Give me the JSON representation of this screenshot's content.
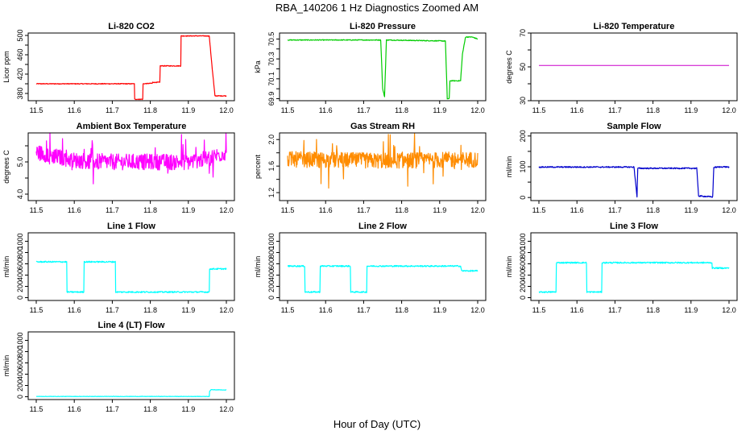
{
  "title": "RBA_140206  1 Hz Diagnostics Zoomed AM",
  "xlabel": "Hour of Day (UTC)",
  "chart_data": [
    {
      "type": "line",
      "title": "Li-820 CO2",
      "ylabel": "Licor ppm",
      "color": "#ff0000",
      "xlim": [
        11.5,
        12.0
      ],
      "xticks": [
        "11.5",
        "11.6",
        "11.7",
        "11.8",
        "11.9",
        "12.0"
      ],
      "ylim": [
        365,
        505
      ],
      "yticks": [
        380,
        400,
        420,
        440,
        460,
        480,
        500
      ],
      "yticklabels": [
        "380",
        "",
        "420",
        "",
        "460",
        "",
        "500"
      ],
      "noise": 0.8,
      "series": [
        {
          "x": [
            11.5,
            11.758,
            11.758,
            11.78,
            11.78,
            11.805,
            11.805,
            11.825,
            11.825,
            11.855,
            11.855,
            11.88,
            11.88,
            11.955,
            11.963,
            11.97,
            12.0
          ],
          "y": [
            400,
            400,
            368,
            368,
            400,
            401,
            403,
            403,
            437,
            437,
            437,
            437,
            499,
            499,
            430,
            375,
            375
          ]
        }
      ]
    },
    {
      "type": "line",
      "title": "Li-820 Pressure",
      "ylabel": "kPa",
      "color": "#00cc00",
      "xlim": [
        11.5,
        12.0
      ],
      "xticks": [
        "11.5",
        "11.6",
        "11.7",
        "11.8",
        "11.9",
        "12.0"
      ],
      "ylim": [
        69.88,
        70.56
      ],
      "yticks": [
        69.9,
        70.0,
        70.1,
        70.2,
        70.3,
        70.4,
        70.5
      ],
      "yticklabels": [
        "69.9",
        "",
        "70.1",
        "",
        "70.3",
        "",
        "70.5"
      ],
      "noise": 0.004,
      "series": [
        {
          "x": [
            11.5,
            11.745,
            11.75,
            11.755,
            11.76,
            11.915,
            11.92,
            11.925,
            11.927,
            11.955,
            11.96,
            11.968,
            11.985,
            12.0
          ],
          "y": [
            70.49,
            70.49,
            70.0,
            69.92,
            70.49,
            70.48,
            69.9,
            69.9,
            70.08,
            70.08,
            70.35,
            70.52,
            70.52,
            70.5
          ]
        }
      ]
    },
    {
      "type": "line",
      "title": "Li-820 Temperature",
      "ylabel": "degrees C",
      "color": "#cc00cc",
      "xlim": [
        11.5,
        12.0
      ],
      "xticks": [
        "11.5",
        "11.6",
        "11.7",
        "11.8",
        "11.9",
        "12.0"
      ],
      "ylim": [
        30,
        70
      ],
      "yticks": [
        30,
        40,
        50,
        60,
        70
      ],
      "yticklabels": [
        "30",
        "",
        "50",
        "",
        "70"
      ],
      "noise": 0,
      "series": [
        {
          "x": [
            11.5,
            12.0
          ],
          "y": [
            50.8,
            50.8
          ]
        }
      ]
    },
    {
      "type": "line",
      "title": "Ambient Box Temperature",
      "ylabel": "degrees C",
      "color": "#ff00ff",
      "xlim": [
        11.5,
        12.0
      ],
      "xticks": [
        "11.5",
        "11.6",
        "11.7",
        "11.8",
        "11.9",
        "12.0"
      ],
      "ylim": [
        3.8,
        5.9
      ],
      "yticks": [
        4.0,
        4.5,
        5.0,
        5.5
      ],
      "yticklabels": [
        "4.0",
        "",
        "5.0",
        ""
      ],
      "noise": 0.25,
      "series": [
        {
          "x": [
            11.5,
            11.6,
            11.7,
            11.8,
            11.9,
            11.95,
            12.0
          ],
          "y": [
            5.3,
            5.05,
            5.0,
            5.0,
            5.0,
            5.1,
            5.3
          ]
        }
      ]
    },
    {
      "type": "line",
      "title": "Gas Stream RH",
      "ylabel": "percent",
      "color": "#ff8c00",
      "xlim": [
        11.5,
        12.0
      ],
      "xticks": [
        "11.5",
        "11.6",
        "11.7",
        "11.8",
        "11.9",
        "12.0"
      ],
      "ylim": [
        1.08,
        2.1
      ],
      "yticks": [
        1.2,
        1.4,
        1.6,
        1.8,
        2.0
      ],
      "yticklabels": [
        "1.2",
        "",
        "1.6",
        "",
        "2.0"
      ],
      "noise": 0.12,
      "series": [
        {
          "x": [
            11.5,
            11.75,
            12.0
          ],
          "y": [
            1.7,
            1.68,
            1.7
          ]
        }
      ]
    },
    {
      "type": "line",
      "title": "Sample Flow",
      "ylabel": "ml/min",
      "color": "#0000cc",
      "xlim": [
        11.5,
        12.0
      ],
      "xticks": [
        "11.5",
        "11.6",
        "11.7",
        "11.8",
        "11.9",
        "12.0"
      ],
      "ylim": [
        -10,
        210
      ],
      "yticks": [
        0,
        50,
        100,
        150,
        200
      ],
      "yticklabels": [
        "0",
        "",
        "100",
        "",
        "200"
      ],
      "noise": 2,
      "series": [
        {
          "x": [
            11.5,
            11.75,
            11.755,
            11.758,
            11.76,
            11.915,
            11.92,
            11.957,
            11.96,
            11.985,
            12.0
          ],
          "y": [
            99,
            99,
            40,
            2,
            95,
            95,
            5,
            2,
            98,
            100,
            99
          ]
        }
      ]
    },
    {
      "type": "line",
      "title": "Line 1 Flow",
      "ylabel": "ml/min",
      "color": "#00ffff",
      "xlim": [
        11.5,
        12.0
      ],
      "xticks": [
        "11.5",
        "11.6",
        "11.7",
        "11.8",
        "11.9",
        "12.0"
      ],
      "ylim": [
        -50,
        1150
      ],
      "yticks": [
        0,
        200,
        400,
        600,
        800,
        1000
      ],
      "yticklabels": [
        "0",
        "200",
        "400",
        "600",
        "800",
        "1000"
      ],
      "noise": 12,
      "series": [
        {
          "x": [
            11.5,
            11.58,
            11.58,
            11.625,
            11.625,
            11.708,
            11.708,
            11.955,
            11.955,
            12.0
          ],
          "y": [
            635,
            635,
            100,
            100,
            635,
            635,
            100,
            100,
            510,
            510
          ]
        }
      ]
    },
    {
      "type": "line",
      "title": "Line 2 Flow",
      "ylabel": "ml/min",
      "color": "#00ffff",
      "xlim": [
        11.5,
        12.0
      ],
      "xticks": [
        "11.5",
        "11.6",
        "11.7",
        "11.8",
        "11.9",
        "12.0"
      ],
      "ylim": [
        -50,
        1150
      ],
      "yticks": [
        0,
        200,
        400,
        600,
        800,
        1000
      ],
      "yticklabels": [
        "0",
        "200",
        "400",
        "600",
        "800",
        "1000"
      ],
      "noise": 12,
      "series": [
        {
          "x": [
            11.5,
            11.545,
            11.545,
            11.585,
            11.585,
            11.665,
            11.665,
            11.708,
            11.708,
            11.955,
            11.958,
            12.0
          ],
          "y": [
            560,
            560,
            100,
            100,
            560,
            560,
            100,
            100,
            560,
            560,
            475,
            475
          ]
        }
      ]
    },
    {
      "type": "line",
      "title": "Line 3 Flow",
      "ylabel": "ml/min",
      "color": "#00ffff",
      "xlim": [
        11.5,
        12.0
      ],
      "xticks": [
        "11.5",
        "11.6",
        "11.7",
        "11.8",
        "11.9",
        "12.0"
      ],
      "ylim": [
        -50,
        1150
      ],
      "yticks": [
        0,
        200,
        400,
        600,
        800,
        1000
      ],
      "yticklabels": [
        "0",
        "200",
        "400",
        "600",
        "800",
        "1000"
      ],
      "noise": 12,
      "series": [
        {
          "x": [
            11.5,
            11.545,
            11.545,
            11.625,
            11.625,
            11.665,
            11.665,
            11.955,
            11.955,
            12.0
          ],
          "y": [
            100,
            100,
            620,
            620,
            100,
            100,
            620,
            620,
            525,
            525
          ]
        }
      ]
    },
    {
      "type": "line",
      "title": "Line 4 (LT) Flow",
      "ylabel": "ml/min",
      "color": "#00ffff",
      "xlim": [
        11.5,
        12.0
      ],
      "xticks": [
        "11.5",
        "11.6",
        "11.7",
        "11.8",
        "11.9",
        "12.0"
      ],
      "ylim": [
        -50,
        1150
      ],
      "yticks": [
        0,
        200,
        400,
        600,
        800,
        1000
      ],
      "yticklabels": [
        "0",
        "200",
        "400",
        "600",
        "800",
        "1000"
      ],
      "noise": 3,
      "series": [
        {
          "x": [
            11.5,
            11.955,
            11.955,
            11.96,
            12.0
          ],
          "y": [
            5,
            5,
            90,
            125,
            120
          ]
        }
      ]
    }
  ]
}
